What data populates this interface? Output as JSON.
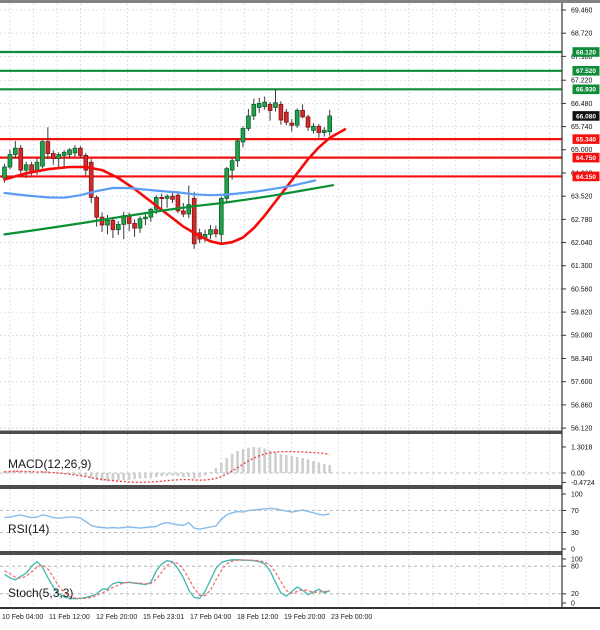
{
  "colors": {
    "background": "#ffffff",
    "grid": "#c3d2ea",
    "top_border": "#828282",
    "pane_separator": "#4d4d4d",
    "axis_line": "#333333",
    "candle_up_fill": "#1fa24a",
    "candle_up_stroke": "#0d5e2a",
    "candle_down_fill": "#d32b2b",
    "candle_down_stroke": "#7e1616",
    "wick": "#3a3a3a",
    "resistance": "#0e8c3a",
    "support": "#f50f0f",
    "current_price": "#111111",
    "macd_hist": "#cecece",
    "macd_signal": "#f23c3c",
    "rsi_line": "#88bce8",
    "stoch_k": "#3fb8ae",
    "stoch_d": "#f06a6a",
    "guide_dash": "#a8a8a8"
  },
  "chart_data": {
    "type": "candlestick",
    "title": "",
    "price_axis": {
      "ticks": [
        69.46,
        68.72,
        67.98,
        67.22,
        66.48,
        65.74,
        65.0,
        64.26,
        63.52,
        62.78,
        62.04,
        61.3,
        60.56,
        59.82,
        59.08,
        58.34,
        57.6,
        56.86,
        56.12
      ]
    },
    "time_axis": {
      "labels": [
        "10 Feb 04:00",
        "11 Feb 12:00",
        "12 Feb 20:00",
        "15 Feb 23:01",
        "17 Feb 04:00",
        "18 Feb 12:00",
        "19 Feb 20:00",
        "23 Feb 00:00"
      ]
    },
    "levels": [
      {
        "value": 68.12,
        "label": "68.120",
        "type": "resistance"
      },
      {
        "value": 67.52,
        "label": "67.520",
        "type": "resistance"
      },
      {
        "value": 66.93,
        "label": "66.930",
        "type": "resistance"
      },
      {
        "value": 66.08,
        "label": "66.080",
        "type": "current"
      },
      {
        "value": 65.34,
        "label": "65.340",
        "type": "support"
      },
      {
        "value": 64.75,
        "label": "64.750",
        "type": "support"
      },
      {
        "value": 64.15,
        "label": "64.150",
        "type": "support"
      }
    ],
    "candles": [
      [
        64.1,
        64.55,
        63.95,
        64.45
      ],
      [
        64.45,
        65.0,
        64.38,
        64.85
      ],
      [
        64.85,
        65.28,
        64.72,
        65.05
      ],
      [
        65.05,
        65.15,
        64.25,
        64.35
      ],
      [
        64.35,
        64.62,
        64.1,
        64.52
      ],
      [
        64.52,
        64.62,
        64.18,
        64.3
      ],
      [
        64.3,
        64.72,
        64.2,
        64.6
      ],
      [
        64.48,
        65.3,
        64.4,
        65.26
      ],
      [
        65.26,
        65.72,
        64.7,
        64.88
      ],
      [
        64.88,
        64.98,
        64.52,
        64.72
      ],
      [
        64.72,
        64.92,
        64.42,
        64.85
      ],
      [
        64.82,
        64.98,
        64.45,
        64.92
      ],
      [
        64.85,
        65.05,
        64.72,
        65.0
      ],
      [
        64.9,
        65.15,
        64.78,
        65.05
      ],
      [
        65.05,
        65.12,
        64.72,
        64.82
      ],
      [
        64.82,
        64.9,
        64.18,
        64.35
      ],
      [
        64.6,
        64.7,
        63.3,
        63.48
      ],
      [
        63.48,
        63.55,
        62.55,
        62.85
      ],
      [
        62.85,
        63.0,
        62.38,
        62.6
      ],
      [
        62.6,
        62.92,
        62.3,
        62.75
      ],
      [
        62.75,
        62.85,
        62.18,
        62.45
      ],
      [
        62.45,
        62.72,
        62.28,
        62.62
      ],
      [
        62.62,
        63.02,
        62.15,
        62.9
      ],
      [
        62.9,
        63.0,
        62.4,
        62.65
      ],
      [
        62.65,
        62.78,
        62.22,
        62.5
      ],
      [
        62.5,
        62.88,
        62.35,
        62.8
      ],
      [
        62.8,
        62.95,
        62.6,
        62.85
      ],
      [
        62.85,
        63.15,
        62.7,
        63.1
      ],
      [
        63.1,
        63.55,
        62.95,
        63.48
      ],
      [
        63.48,
        63.6,
        63.12,
        63.45
      ],
      [
        63.45,
        63.58,
        63.15,
        63.52
      ],
      [
        63.52,
        63.62,
        63.3,
        63.42
      ],
      [
        63.55,
        63.62,
        62.98,
        63.05
      ],
      [
        63.05,
        63.3,
        62.85,
        62.95
      ],
      [
        62.95,
        63.86,
        62.82,
        63.25
      ],
      [
        63.45,
        63.66,
        61.84,
        62.0
      ],
      [
        62.35,
        62.48,
        62.02,
        62.15
      ],
      [
        62.18,
        62.45,
        62.05,
        62.3
      ],
      [
        62.3,
        62.6,
        62.15,
        62.45
      ],
      [
        62.45,
        62.58,
        62.2,
        62.32
      ],
      [
        62.3,
        63.5,
        62.0,
        63.45
      ],
      [
        63.45,
        64.45,
        63.35,
        64.4
      ],
      [
        64.35,
        64.75,
        64.05,
        64.65
      ],
      [
        64.65,
        65.35,
        64.45,
        65.28
      ],
      [
        65.25,
        65.75,
        65.08,
        65.68
      ],
      [
        65.68,
        66.3,
        65.6,
        66.08
      ],
      [
        66.08,
        66.63,
        65.95,
        66.45
      ],
      [
        66.35,
        66.66,
        66.18,
        66.48
      ],
      [
        66.38,
        66.7,
        66.28,
        66.52
      ],
      [
        66.45,
        66.52,
        65.93,
        66.25
      ],
      [
        66.35,
        66.92,
        66.22,
        66.5
      ],
      [
        66.45,
        66.55,
        65.8,
        65.95
      ],
      [
        66.2,
        66.3,
        65.78,
        65.88
      ],
      [
        65.85,
        65.98,
        65.58,
        65.78
      ],
      [
        65.78,
        66.32,
        65.7,
        66.26
      ],
      [
        66.26,
        66.45,
        66.0,
        66.05
      ],
      [
        66.05,
        66.12,
        65.6,
        65.72
      ],
      [
        65.62,
        65.85,
        65.52,
        65.75
      ],
      [
        65.75,
        65.82,
        65.38,
        65.55
      ],
      [
        65.55,
        65.72,
        65.42,
        65.62
      ],
      [
        65.58,
        66.28,
        65.45,
        66.08
      ]
    ],
    "ma_lines": [
      {
        "name": "ma-fast-red",
        "color": "#f60909",
        "width": 2.6,
        "points": [
          [
            0,
            64.05
          ],
          [
            4,
            64.25
          ],
          [
            8,
            64.38
          ],
          [
            12,
            64.45
          ],
          [
            15,
            64.45
          ],
          [
            18,
            64.35
          ],
          [
            21,
            64.1
          ],
          [
            24,
            63.75
          ],
          [
            27,
            63.35
          ],
          [
            30,
            62.95
          ],
          [
            33,
            62.55
          ],
          [
            36,
            62.25
          ],
          [
            38,
            62.08
          ],
          [
            40,
            62.0
          ],
          [
            42,
            62.05
          ],
          [
            44,
            62.2
          ],
          [
            46,
            62.5
          ],
          [
            48,
            62.9
          ],
          [
            50,
            63.35
          ],
          [
            52,
            63.8
          ],
          [
            54,
            64.25
          ],
          [
            56,
            64.7
          ],
          [
            58,
            65.08
          ],
          [
            60,
            65.38
          ],
          [
            62.8,
            65.65
          ]
        ]
      },
      {
        "name": "ma-mid-blue",
        "color": "#5b9cf5",
        "width": 2.2,
        "points": [
          [
            0,
            63.62
          ],
          [
            4,
            63.54
          ],
          [
            8,
            63.48
          ],
          [
            11,
            63.47
          ],
          [
            14,
            63.55
          ],
          [
            17,
            63.68
          ],
          [
            20,
            63.78
          ],
          [
            23,
            63.78
          ],
          [
            26,
            63.73
          ],
          [
            29,
            63.68
          ],
          [
            32,
            63.64
          ],
          [
            35,
            63.58
          ],
          [
            38,
            63.55
          ],
          [
            41,
            63.57
          ],
          [
            44,
            63.62
          ],
          [
            47,
            63.68
          ],
          [
            50,
            63.76
          ],
          [
            53,
            63.85
          ],
          [
            55,
            63.93
          ],
          [
            57.3,
            64.02
          ]
        ]
      },
      {
        "name": "ma-slow-green",
        "color": "#0a8f33",
        "width": 2.2,
        "points": [
          [
            0,
            62.3
          ],
          [
            5,
            62.42
          ],
          [
            10,
            62.55
          ],
          [
            15,
            62.68
          ],
          [
            20,
            62.82
          ],
          [
            25,
            62.95
          ],
          [
            30,
            63.08
          ],
          [
            35,
            63.2
          ],
          [
            40,
            63.3
          ],
          [
            45,
            63.42
          ],
          [
            50,
            63.55
          ],
          [
            55,
            63.7
          ],
          [
            60.6,
            63.87
          ]
        ]
      }
    ],
    "panels": {
      "macd": {
        "label": "MACD(12,26,9)",
        "axis": [
          {
            "value": 1.3018,
            "label": "1.3018"
          },
          {
            "value": 0,
            "label": "0.00"
          },
          {
            "value": -0.4724,
            "label": "-0.4724"
          }
        ],
        "histogram": [
          0.1,
          0.12,
          0.14,
          0.12,
          0.08,
          0.06,
          0.06,
          0.1,
          0.08,
          0.04,
          0.0,
          -0.03,
          -0.05,
          -0.08,
          -0.12,
          -0.18,
          -0.28,
          -0.35,
          -0.4,
          -0.42,
          -0.4,
          -0.38,
          -0.36,
          -0.34,
          -0.31,
          -0.28,
          -0.26,
          -0.24,
          -0.2,
          -0.16,
          -0.14,
          -0.12,
          -0.15,
          -0.2,
          -0.18,
          -0.28,
          -0.22,
          -0.12,
          0.05,
          0.25,
          0.5,
          0.75,
          0.95,
          1.1,
          1.2,
          1.26,
          1.3,
          1.28,
          1.22,
          1.12,
          1.02,
          0.95,
          0.9,
          0.85,
          0.8,
          0.75,
          0.68,
          0.6,
          0.52,
          0.45,
          0.4
        ],
        "signal": [
          0.06,
          0.07,
          0.08,
          0.08,
          0.07,
          0.06,
          0.05,
          0.05,
          0.04,
          0.02,
          0.0,
          -0.03,
          -0.06,
          -0.1,
          -0.14,
          -0.18,
          -0.23,
          -0.28,
          -0.32,
          -0.35,
          -0.38,
          -0.41,
          -0.43,
          -0.45,
          -0.46,
          -0.47,
          -0.46,
          -0.45,
          -0.43,
          -0.41,
          -0.38,
          -0.36,
          -0.34,
          -0.33,
          -0.33,
          -0.35,
          -0.36,
          -0.35,
          -0.32,
          -0.27,
          -0.18,
          -0.05,
          0.1,
          0.27,
          0.44,
          0.6,
          0.74,
          0.86,
          0.95,
          1.01,
          1.05,
          1.06,
          1.07,
          1.07,
          1.06,
          1.05,
          1.04,
          1.02,
          1.0,
          0.98,
          0.92
        ]
      },
      "rsi": {
        "label": "RSI(14)",
        "axis": [
          {
            "value": 100,
            "label": "100"
          },
          {
            "value": 70,
            "label": "70"
          },
          {
            "value": 30,
            "label": "30"
          },
          {
            "value": 0,
            "label": "0"
          }
        ],
        "guide_levels": [
          70,
          30
        ],
        "values": [
          57,
          58,
          60,
          62,
          59,
          57,
          58,
          62,
          60,
          57,
          56,
          57,
          58,
          58,
          56,
          50,
          43,
          40,
          39,
          38,
          39,
          38,
          39,
          40,
          39,
          38,
          39,
          40,
          41,
          46,
          48,
          46,
          44,
          43,
          48,
          38,
          36,
          38,
          40,
          42,
          54,
          62,
          66,
          68,
          67,
          70,
          71,
          72,
          73,
          74,
          73,
          71,
          69,
          67,
          69,
          71,
          68,
          66,
          63,
          62,
          64
        ]
      },
      "stoch": {
        "label": "Stoch(5,3,3)",
        "axis": [
          {
            "value": 100,
            "label": "100"
          },
          {
            "value": 80,
            "label": "80"
          },
          {
            "value": 20,
            "label": "20"
          },
          {
            "value": 0,
            "label": "0"
          }
        ],
        "guide_levels": [
          80,
          20
        ],
        "k": [
          62,
          55,
          50,
          58,
          65,
          80,
          90,
          78,
          55,
          35,
          20,
          13,
          10,
          9,
          10,
          12,
          15,
          20,
          30,
          30,
          42,
          45,
          44,
          45,
          43,
          42,
          40,
          45,
          70,
          85,
          92,
          90,
          75,
          55,
          28,
          12,
          10,
          25,
          50,
          75,
          88,
          92,
          94,
          94,
          93,
          93,
          92,
          90,
          85,
          70,
          45,
          22,
          15,
          25,
          35,
          28,
          18,
          24,
          30,
          22,
          27
        ],
        "d": [
          70,
          64,
          56,
          54,
          58,
          68,
          78,
          83,
          74,
          56,
          37,
          23,
          14,
          11,
          10,
          10,
          12,
          16,
          22,
          27,
          34,
          39,
          44,
          45,
          44,
          43,
          42,
          42,
          52,
          67,
          82,
          89,
          86,
          73,
          53,
          32,
          17,
          16,
          28,
          50,
          71,
          85,
          91,
          93,
          94,
          93,
          93,
          92,
          89,
          82,
          67,
          46,
          27,
          21,
          25,
          29,
          27,
          23,
          24,
          25,
          26
        ]
      }
    }
  }
}
